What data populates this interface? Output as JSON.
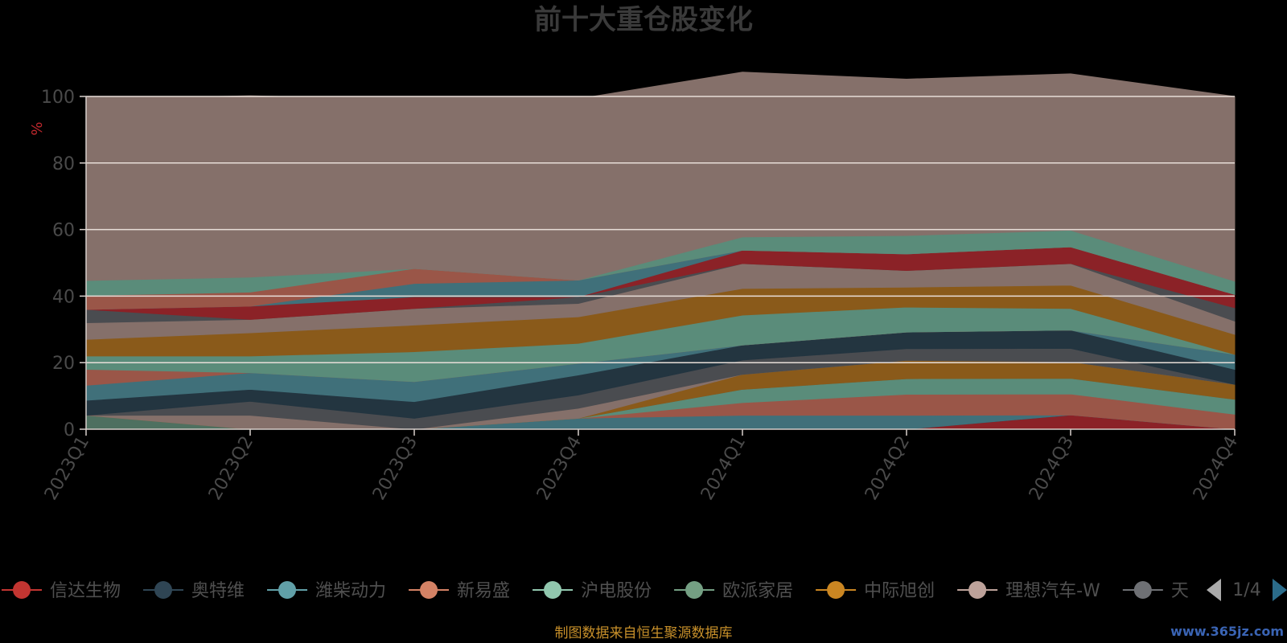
{
  "colors": {
    "background": "#000000",
    "plot_background": "#84726c",
    "gridline": "#e8ded8",
    "title": "#3a3a3a",
    "unit": "#c0282d",
    "source": "#c8902a",
    "watermark": "#3a64b4"
  },
  "legend": {
    "visible_items": [
      {
        "label": "信达生物",
        "color": "#c23531"
      },
      {
        "label": "奥特维",
        "color": "#2f4554"
      },
      {
        "label": "潍柴动力",
        "color": "#61a0a8"
      },
      {
        "label": "新易盛",
        "color": "#d48265"
      },
      {
        "label": "沪电股份",
        "color": "#91c7ae"
      },
      {
        "label": "欧派家居",
        "color": "#749f83"
      },
      {
        "label": "中际旭创",
        "color": "#ca8622"
      },
      {
        "label": "理想汽车-W",
        "color": "#bda29a"
      },
      {
        "label": "天",
        "color": "#6e7074"
      }
    ],
    "page_indicator": "1/4",
    "prev_icon": "triangle-left-icon",
    "next_icon": "triangle-right-icon"
  },
  "source_text": "制图数据来自恒生聚源数据库",
  "watermark": "www.365jz.com",
  "chart_data": {
    "type": "area",
    "stacked": true,
    "title": "前十大重仓股变化",
    "ylabel": "%",
    "xlabel": "",
    "ylim": [
      0,
      100
    ],
    "yticks": [
      0,
      20,
      40,
      60,
      80,
      100
    ],
    "categories": [
      "2023Q1",
      "2023Q2",
      "2023Q3",
      "2023Q4",
      "2024Q1",
      "2024Q2",
      "2024Q3",
      "2024Q4"
    ],
    "grid": true,
    "series": [
      {
        "name": "信达生物",
        "color": "#8b2227",
        "values": [
          0,
          0,
          0,
          0,
          0,
          0,
          4.3,
          0
        ]
      },
      {
        "name": "奥特维",
        "color": "#233540",
        "values": [
          0,
          0,
          0,
          0,
          0,
          0,
          0,
          0
        ]
      },
      {
        "name": "潍柴动力",
        "color": "#40707a",
        "values": [
          0,
          0,
          0,
          3.3,
          4.2,
          4.2,
          0,
          0
        ]
      },
      {
        "name": "新易盛",
        "color": "#9a5648",
        "values": [
          0,
          0,
          0,
          0,
          3.8,
          6.3,
          6.3,
          4.5
        ]
      },
      {
        "name": "沪电股份",
        "color": "#5a8c7a",
        "values": [
          0,
          0,
          0,
          0,
          4.0,
          4.7,
          4.7,
          4.5
        ]
      },
      {
        "name": "欧派家居",
        "color": "#4e7060",
        "values": [
          4.2,
          0,
          0,
          0,
          0,
          0,
          0,
          0
        ]
      },
      {
        "name": "中际旭创",
        "color": "#8a5a1a",
        "values": [
          0,
          0,
          0,
          0,
          4.5,
          5.5,
          5.0,
          4.5
        ]
      },
      {
        "name": "理想汽车-W",
        "color": "#85706a",
        "values": [
          0,
          4.2,
          0,
          3.0,
          0,
          0,
          0,
          0
        ]
      },
      {
        "name": "天",
        "color": "#4a4c50",
        "values": [
          0,
          4.2,
          3.3,
          4.0,
          4.3,
          3.5,
          4.0,
          0
        ]
      },
      {
        "name": "",
        "color": "#233540",
        "values": [
          4.5,
          3.6,
          5.0,
          6.0,
          4.5,
          5.0,
          5.5,
          4.5
        ]
      },
      {
        "name": "",
        "color": "#40707a",
        "values": [
          4.5,
          5.0,
          6.0,
          3.5,
          0,
          0,
          0,
          4.5
        ]
      },
      {
        "name": "",
        "color": "#9a5648",
        "values": [
          4.8,
          0,
          0,
          0,
          0,
          0,
          0,
          0
        ]
      },
      {
        "name": "",
        "color": "#5a8c7a",
        "values": [
          4.0,
          5.0,
          9.0,
          6.0,
          9.0,
          7.5,
          6.5,
          0
        ]
      },
      {
        "name": "",
        "color": "#8a5a1a",
        "values": [
          5.0,
          7.0,
          8.0,
          8.0,
          8.0,
          6.0,
          7.0,
          6.0
        ]
      },
      {
        "name": "",
        "color": "#85706a",
        "values": [
          5.0,
          4.0,
          5.0,
          4.0,
          7.5,
          5.0,
          6.5,
          4.0
        ]
      },
      {
        "name": "",
        "color": "#4a4c50",
        "values": [
          4.0,
          0,
          0,
          2.0,
          0,
          0,
          0,
          4.0
        ]
      },
      {
        "name": "",
        "color": "#8b2227",
        "values": [
          0,
          4.0,
          3.5,
          0,
          4.0,
          5.0,
          5.0,
          4.0
        ]
      },
      {
        "name": "",
        "color": "#40707a",
        "values": [
          0,
          0,
          4.0,
          5.0,
          0,
          0,
          0,
          0
        ]
      },
      {
        "name": "",
        "color": "#9a5648",
        "values": [
          4.2,
          4.2,
          4.5,
          0,
          0,
          0,
          0,
          0
        ]
      },
      {
        "name": "",
        "color": "#5a8c7a",
        "values": [
          4.5,
          4.5,
          0,
          0,
          4.0,
          5.5,
          5.0,
          4.0
        ]
      },
      {
        "name": "",
        "color": "#85706a",
        "values": [
          54.5,
          54.5,
          50.7,
          54.5,
          49.5,
          47.0,
          47.0,
          55.5
        ]
      }
    ]
  }
}
